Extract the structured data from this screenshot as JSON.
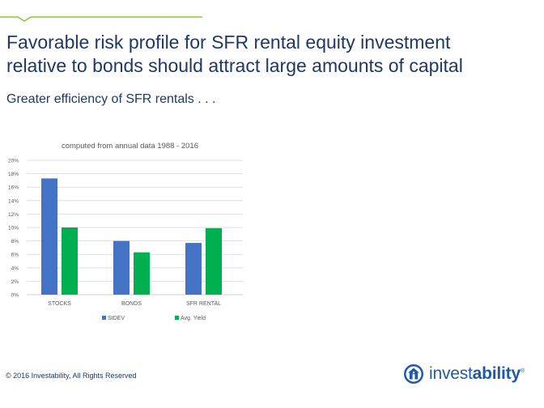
{
  "slide": {
    "title_line1": "Favorable risk profile for SFR rental equity investment",
    "title_line2": "relative to bonds should attract large amounts of capital",
    "subtitle": "Greater efficiency of SFR rentals . . .",
    "copyright": "© 2016 Investability, All Rights Reserved",
    "logo_light": "invest",
    "logo_bold": "ability",
    "logo_mark": "®"
  },
  "colors": {
    "accent_line": "#8cc63f",
    "title": "#1f3864",
    "stdev": "#4472c4",
    "yield": "#00b050"
  },
  "chart_data": {
    "type": "bar",
    "title": "computed from annual data 1988 - 2016",
    "categories": [
      "STOCKS",
      "BONDS",
      "SFR RENTAL"
    ],
    "series": [
      {
        "name": "StDEV",
        "values": [
          17.3,
          8.0,
          7.7
        ]
      },
      {
        "name": "Avg. Yield",
        "values": [
          10.0,
          6.3,
          9.9
        ]
      }
    ],
    "ylim": [
      0,
      20
    ],
    "yticks": [
      "0%",
      "2%",
      "4%",
      "6%",
      "8%",
      "10%",
      "12%",
      "14%",
      "16%",
      "18%",
      "20%"
    ],
    "grid": true,
    "legend": "bottom"
  }
}
